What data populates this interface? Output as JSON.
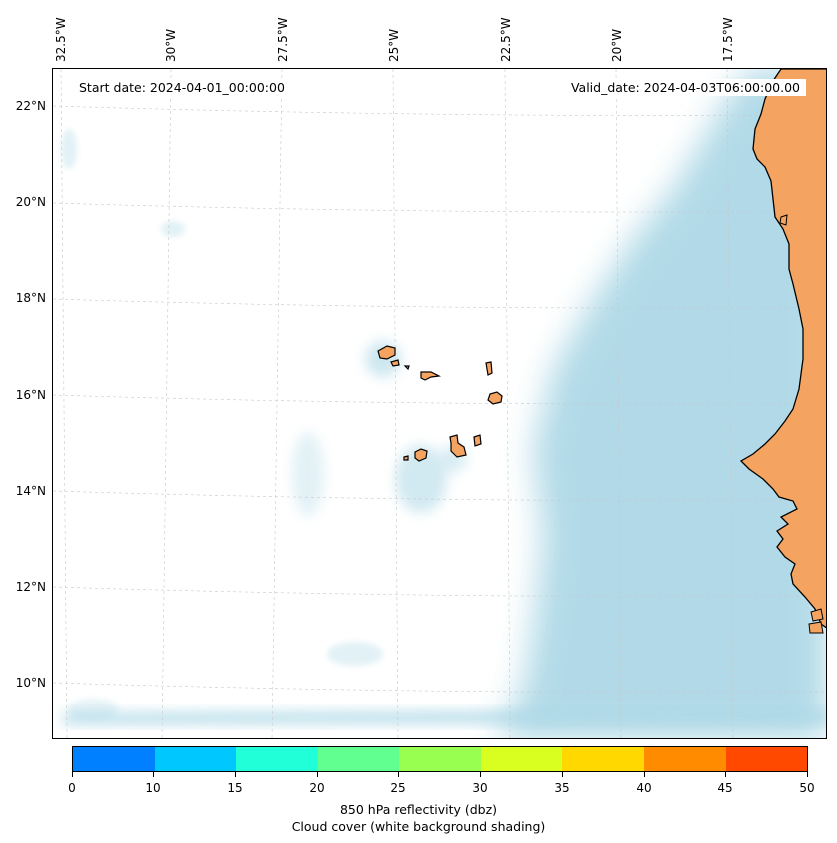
{
  "map": {
    "start_date": "Start date: 2024-04-01_00:00:00",
    "valid_date": "Valid_date: 2024-04-03T06:00:00.00",
    "longitude_labels": [
      "32.5°W",
      "30°W",
      "27.5°W",
      "25°W",
      "22.5°W",
      "20°W",
      "17.5°W"
    ],
    "latitude_labels": [
      "22°N",
      "20°N",
      "18°N",
      "16°N",
      "14°N",
      "12°N",
      "10°N"
    ],
    "colors": {
      "land": "#f4a460",
      "ocean": "#ffffff",
      "cloud": "#add8e6",
      "coastline": "#000000",
      "gridline": "#c8c8c8"
    },
    "icons": {
      "islands": "cape-verde-islands-shape",
      "coast": "west-africa-coastline-shape"
    }
  },
  "colorbar": {
    "tick_labels": [
      "0",
      "10",
      "15",
      "20",
      "25",
      "30",
      "35",
      "40",
      "45",
      "50"
    ],
    "colors": [
      "#0080ff",
      "#00c8ff",
      "#20ffd8",
      "#60ff90",
      "#98ff50",
      "#d8ff20",
      "#ffd800",
      "#ff8c00",
      "#ff4800"
    ],
    "title_line1": "850 hPa reflectivity (dbz)",
    "title_line2": "Cloud cover (white background shading)"
  }
}
